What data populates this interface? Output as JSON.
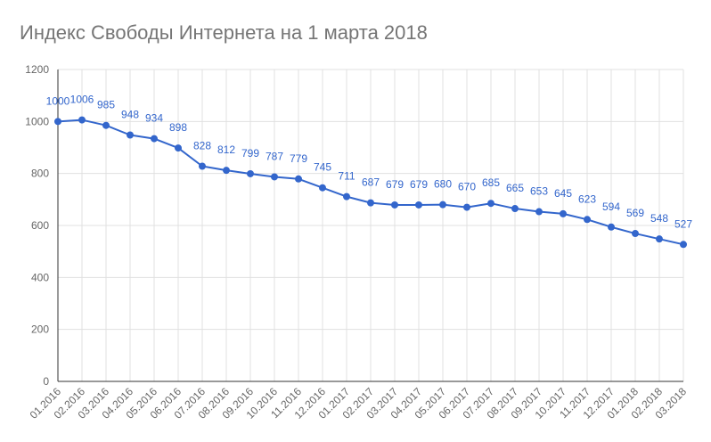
{
  "chart_data": {
    "type": "line",
    "title": "Индекс Свободы Интернета на 1 марта 2018",
    "xlabel": "",
    "ylabel": "",
    "ylim": [
      0,
      1200
    ],
    "yticks": [
      "0",
      "200",
      "400",
      "600",
      "800",
      "1000",
      "1200"
    ],
    "grid": true,
    "legend": "none",
    "colors": {
      "line": "#3366cc",
      "label": "#3366cc",
      "grid": "#e0e0e0",
      "axis": "#333333",
      "tick": "#666666"
    },
    "categories": [
      "01.2016",
      "02.2016",
      "03.2016",
      "04.2016",
      "05.2016",
      "06.2016",
      "07.2016",
      "08.2016",
      "09.2016",
      "10.2016",
      "11.2016",
      "12.2016",
      "01.2017",
      "02.2017",
      "03.2017",
      "04.2017",
      "05.2017",
      "06.2017",
      "07.2017",
      "08.2017",
      "09.2017",
      "10.2017",
      "11.2017",
      "12.2017",
      "01.2018",
      "02.2018",
      "03.2018"
    ],
    "series": [
      {
        "values": [
          1000,
          1006,
          985,
          948,
          934,
          898,
          828,
          812,
          799,
          787,
          779,
          745,
          711,
          687,
          679,
          679,
          680,
          670,
          685,
          665,
          653,
          645,
          623,
          594,
          569,
          548,
          527
        ]
      }
    ]
  }
}
